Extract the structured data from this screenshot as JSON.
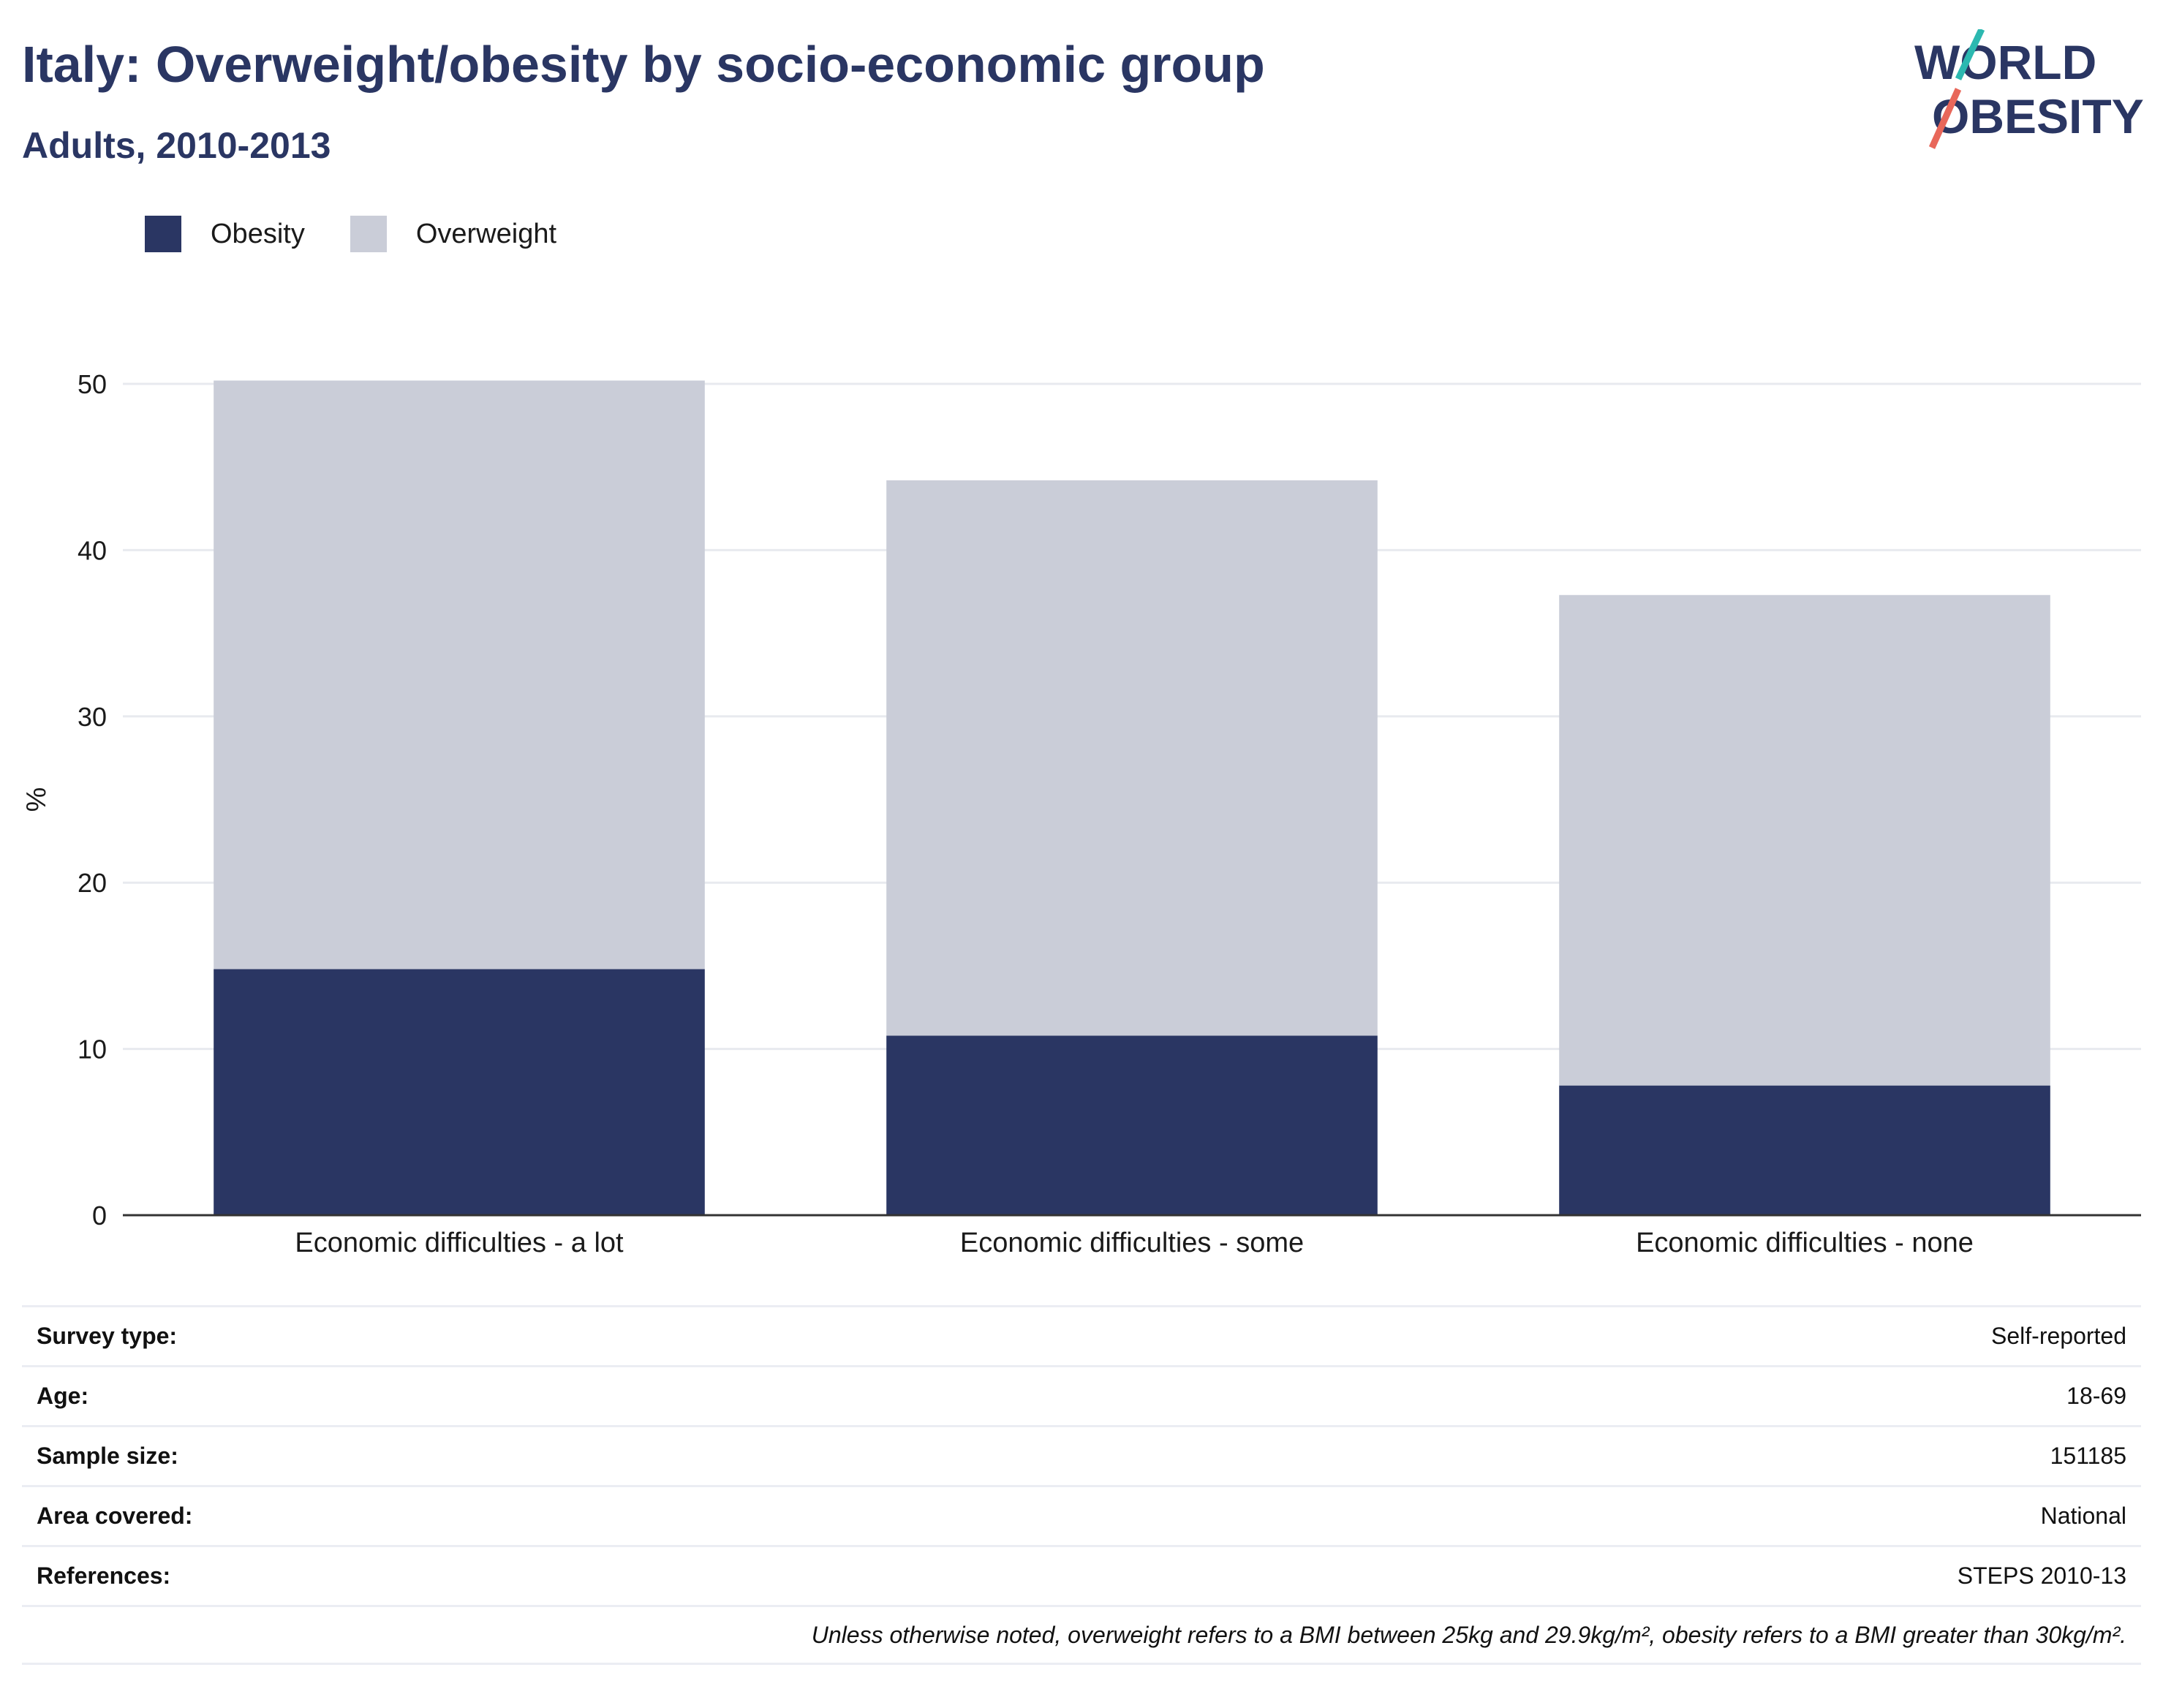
{
  "header": {
    "title": "Italy: Overweight/obesity by socio-economic group",
    "subtitle": "Adults, 2010-2013"
  },
  "logo": {
    "line1": "WORLD",
    "line2": "OBESITY"
  },
  "colors": {
    "obesity": "#2a3663",
    "overweight": "#cacdd8",
    "title": "#2a3663",
    "logo_teal": "#2cb8b0",
    "logo_coral": "#e8675a"
  },
  "legend": [
    {
      "label": "Obesity",
      "color": "#2a3663"
    },
    {
      "label": "Overweight",
      "color": "#cacdd8"
    }
  ],
  "chart_data": {
    "type": "bar",
    "stacked": true,
    "categories": [
      "Economic difficulties - a lot",
      "Economic difficulties - some",
      "Economic difficulties - none"
    ],
    "series": [
      {
        "name": "Obesity",
        "values": [
          14.8,
          10.8,
          7.8
        ]
      },
      {
        "name": "Overweight",
        "values": [
          35.4,
          33.4,
          29.5
        ]
      }
    ],
    "ylabel": "%",
    "ylim": [
      0,
      50
    ],
    "yticks": [
      0,
      10,
      20,
      30,
      40,
      50
    ],
    "grid": true,
    "legend_position": "top-left"
  },
  "info": [
    {
      "label": "Survey type:",
      "value": "Self-reported"
    },
    {
      "label": "Age:",
      "value": "18-69"
    },
    {
      "label": "Sample size:",
      "value": "151185"
    },
    {
      "label": "Area covered:",
      "value": "National"
    },
    {
      "label": "References:",
      "value": "STEPS 2010-13"
    }
  ],
  "note": "Unless otherwise noted, overweight refers to a BMI between 25kg and 29.9kg/m², obesity refers to a BMI greater than 30kg/m²."
}
